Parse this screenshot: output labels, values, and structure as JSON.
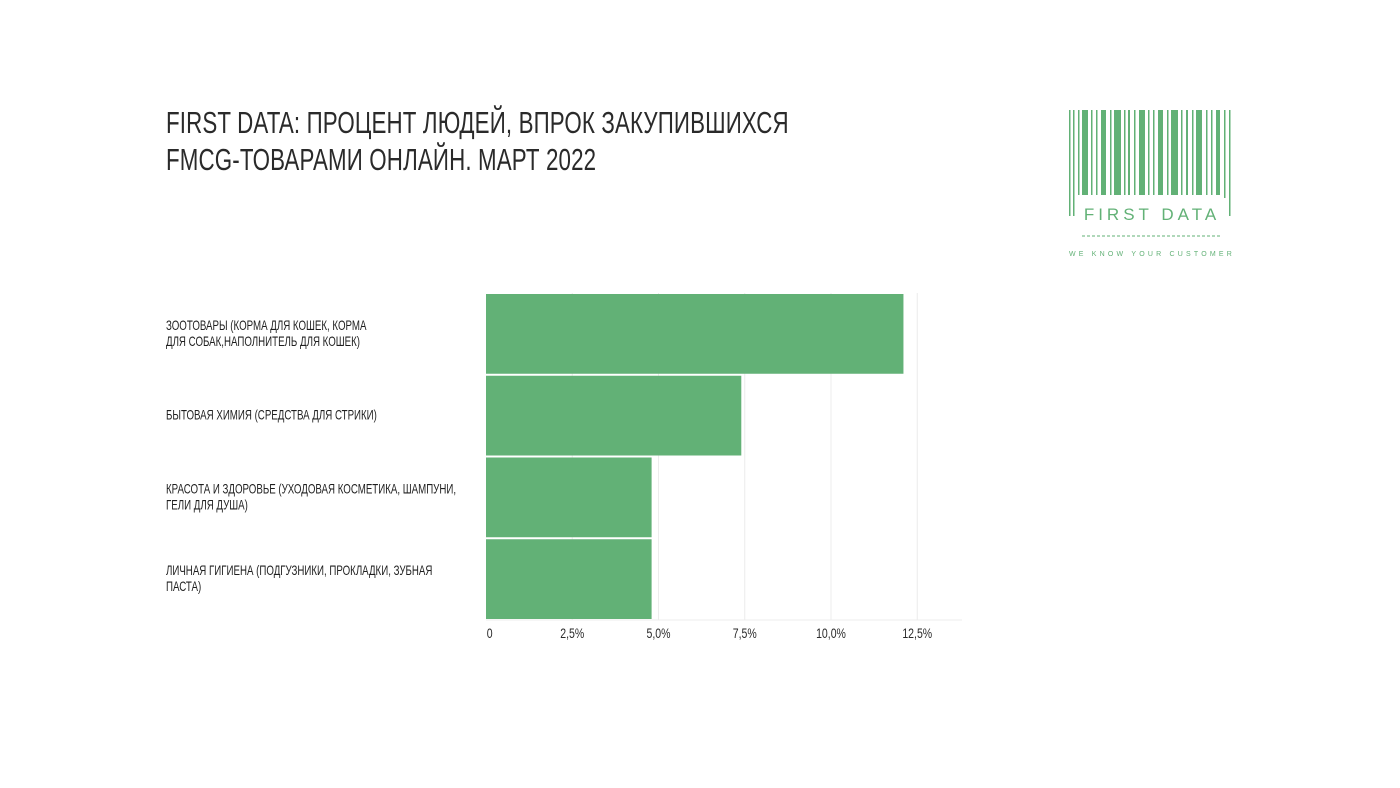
{
  "title_lines": [
    "FIRST DATA: ПРОЦЕНТ ЛЮДЕЙ, ВПРОК ЗАКУПИВШИХСЯ",
    "FMCG-ТОВАРАМИ ОНЛАЙН. МАРТ 2022"
  ],
  "logo": {
    "text": "FIRST DATA",
    "tagline": "WE KNOW YOUR CUSTOMER",
    "icon": "barcode-icon",
    "color": "#62b176"
  },
  "colors": {
    "bar": "#62b176",
    "grid": "#ececec",
    "text": "#2a2a2a"
  },
  "chart_data": {
    "type": "bar",
    "orientation": "horizontal",
    "categories": [
      [
        "ЗООТОВАРЫ (КОРМА ДЛЯ КОШЕК, КОРМА",
        "ДЛЯ СОБАК,НАПОЛНИТЕЛЬ ДЛЯ КОШЕК)"
      ],
      [
        "БЫТОВАЯ ХИМИЯ (СРЕДСТВА ДЛЯ СТРИКИ)"
      ],
      [
        "КРАСОТА И ЗДОРОВЬЕ (УХОДОВАЯ КОСМЕТИКА, ШАМПУНИ,",
        "ГЕЛИ ДЛЯ ДУША)"
      ],
      [
        "ЛИЧНАЯ ГИГИЕНА (ПОДГУЗНИКИ, ПРОКЛАДКИ, ЗУБНАЯ",
        "ПАСТА)"
      ]
    ],
    "values": [
      12.1,
      7.4,
      4.8,
      4.8
    ],
    "xlim": [
      0,
      13.8
    ],
    "ticks": [
      0,
      2.5,
      5.0,
      7.5,
      10.0,
      12.5
    ],
    "tick_labels": [
      "0",
      "2,5%",
      "5,0%",
      "7,5%",
      "10,0%",
      "12,5%"
    ],
    "grid": true
  }
}
